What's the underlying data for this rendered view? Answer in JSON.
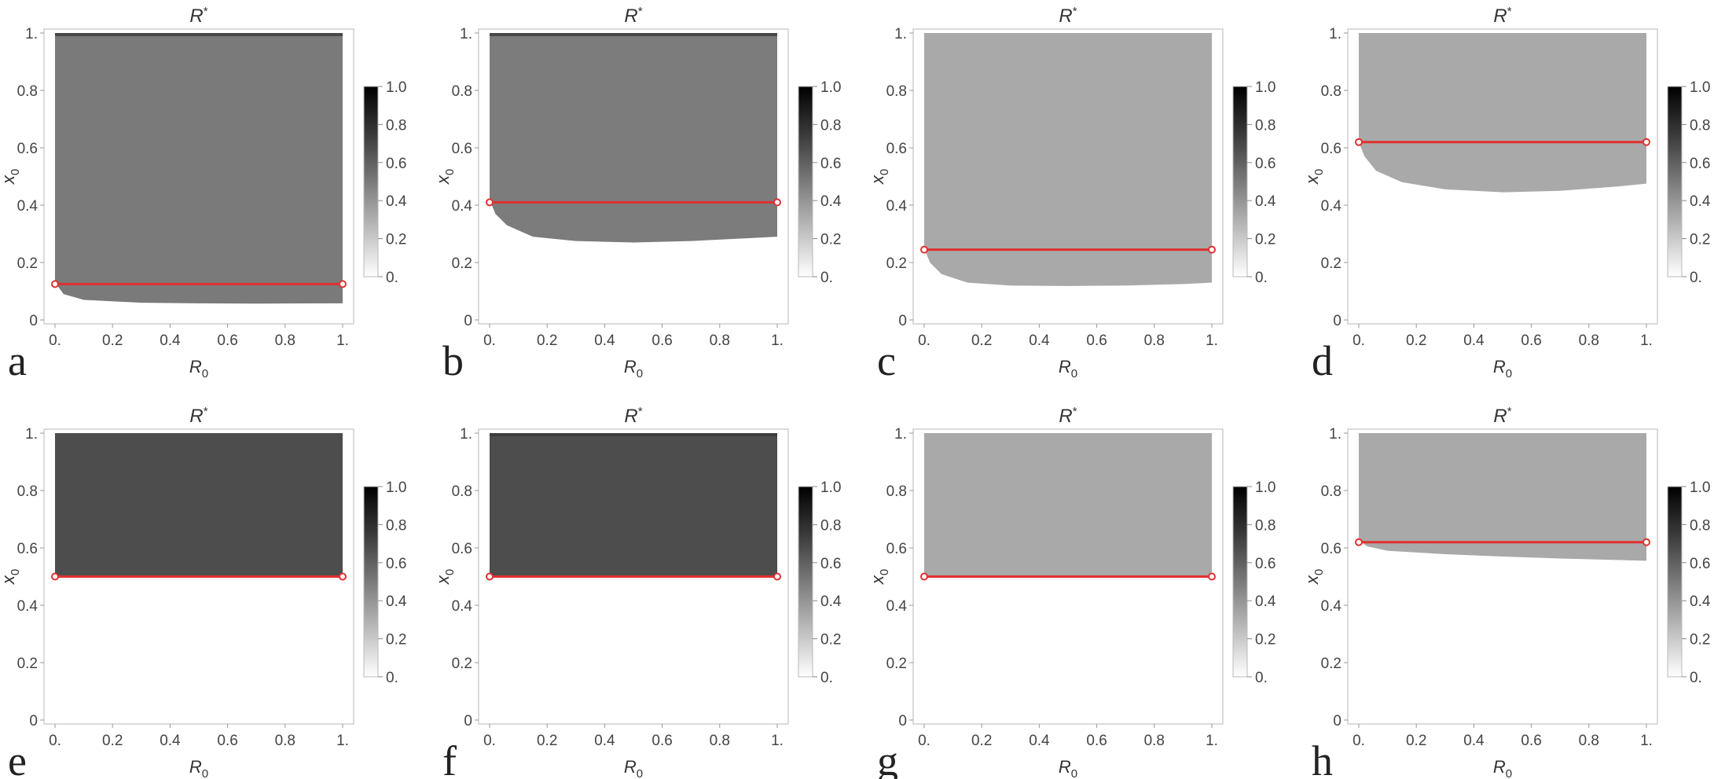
{
  "chart_data": [
    {
      "type": "heatmap",
      "panel_label": "a",
      "title": "R*",
      "xlabel": "R0",
      "ylabel": "x0",
      "xlim": [
        0,
        1
      ],
      "ylim": [
        0,
        1
      ],
      "x_ticks": [
        "0.",
        "0.2",
        "0.4",
        "0.6",
        "0.8",
        "1."
      ],
      "y_ticks": [
        "0",
        "0.2",
        "0.4",
        "0.6",
        "0.8",
        "1."
      ],
      "region_value": 0.58,
      "region_color": "#7a7a7a",
      "top_band_color": "#474747",
      "boundary": [
        [
          0,
          0.13
        ],
        [
          0.03,
          0.09
        ],
        [
          0.1,
          0.07
        ],
        [
          0.3,
          0.06
        ],
        [
          0.5,
          0.058
        ],
        [
          0.7,
          0.057
        ],
        [
          1,
          0.058
        ]
      ],
      "red_line_y": 0.125,
      "colorbar": {
        "ticks": [
          "1.0",
          "0.8",
          "0.6",
          "0.4",
          "0.2",
          "0."
        ],
        "range": [
          0,
          1
        ]
      }
    },
    {
      "type": "heatmap",
      "panel_label": "b",
      "title": "R*",
      "xlabel": "R0",
      "ylabel": "x0",
      "xlim": [
        0,
        1
      ],
      "ylim": [
        0,
        1
      ],
      "x_ticks": [
        "0.",
        "0.2",
        "0.4",
        "0.6",
        "0.8",
        "1."
      ],
      "y_ticks": [
        "0",
        "0.2",
        "0.4",
        "0.6",
        "0.8",
        "1."
      ],
      "region_value": 0.57,
      "region_color": "#7c7c7c",
      "top_band_color": "#474747",
      "boundary": [
        [
          0,
          0.42
        ],
        [
          0.02,
          0.37
        ],
        [
          0.06,
          0.33
        ],
        [
          0.15,
          0.29
        ],
        [
          0.3,
          0.275
        ],
        [
          0.5,
          0.27
        ],
        [
          0.7,
          0.275
        ],
        [
          0.9,
          0.285
        ],
        [
          1,
          0.29
        ]
      ],
      "red_line_y": 0.41,
      "colorbar": {
        "ticks": [
          "1.0",
          "0.8",
          "0.6",
          "0.4",
          "0.2",
          "0."
        ],
        "range": [
          0,
          1
        ]
      }
    },
    {
      "type": "heatmap",
      "panel_label": "c",
      "title": "R*",
      "xlabel": "R0",
      "ylabel": "x0",
      "xlim": [
        0,
        1
      ],
      "ylim": [
        0,
        1
      ],
      "x_ticks": [
        "0.",
        "0.2",
        "0.4",
        "0.6",
        "0.8",
        "1."
      ],
      "y_ticks": [
        "0",
        "0.2",
        "0.4",
        "0.6",
        "0.8",
        "1."
      ],
      "region_value": 0.37,
      "region_color": "#a9a9a9",
      "top_band_color": "#a9a9a9",
      "boundary": [
        [
          0,
          0.25
        ],
        [
          0.02,
          0.2
        ],
        [
          0.06,
          0.16
        ],
        [
          0.15,
          0.13
        ],
        [
          0.3,
          0.12
        ],
        [
          0.5,
          0.118
        ],
        [
          0.7,
          0.12
        ],
        [
          0.9,
          0.125
        ],
        [
          1,
          0.13
        ]
      ],
      "red_line_y": 0.245,
      "colorbar": {
        "ticks": [
          "1.0",
          "0.8",
          "0.6",
          "0.4",
          "0.2",
          "0."
        ],
        "range": [
          0,
          1
        ]
      }
    },
    {
      "type": "heatmap",
      "panel_label": "d",
      "title": "R*",
      "xlabel": "R0",
      "ylabel": "x0",
      "xlim": [
        0,
        1
      ],
      "ylim": [
        0,
        1
      ],
      "x_ticks": [
        "0.",
        "0.2",
        "0.4",
        "0.6",
        "0.8",
        "1."
      ],
      "y_ticks": [
        "0",
        "0.2",
        "0.4",
        "0.6",
        "0.8",
        "1."
      ],
      "region_value": 0.37,
      "region_color": "#a9a9a9",
      "top_band_color": "#a9a9a9",
      "boundary": [
        [
          0,
          0.62
        ],
        [
          0.02,
          0.57
        ],
        [
          0.06,
          0.52
        ],
        [
          0.15,
          0.48
        ],
        [
          0.3,
          0.455
        ],
        [
          0.5,
          0.445
        ],
        [
          0.7,
          0.45
        ],
        [
          0.9,
          0.465
        ],
        [
          1,
          0.475
        ]
      ],
      "red_line_y": 0.62,
      "colorbar": {
        "ticks": [
          "1.0",
          "0.8",
          "0.6",
          "0.4",
          "0.2",
          "0."
        ],
        "range": [
          0,
          1
        ]
      }
    },
    {
      "type": "heatmap",
      "panel_label": "e",
      "title": "R*",
      "xlabel": "R0",
      "ylabel": "x0",
      "xlim": [
        0,
        1
      ],
      "ylim": [
        0,
        1
      ],
      "x_ticks": [
        "0.",
        "0.2",
        "0.4",
        "0.6",
        "0.8",
        "1."
      ],
      "y_ticks": [
        "0",
        "0.2",
        "0.4",
        "0.6",
        "0.8",
        "1."
      ],
      "region_value": 0.78,
      "region_color": "#4d4d4d",
      "top_band_color": "#4d4d4d",
      "boundary": [
        [
          0,
          0.5
        ],
        [
          1,
          0.5
        ]
      ],
      "red_line_y": 0.5,
      "colorbar": {
        "ticks": [
          "1.0",
          "0.8",
          "0.6",
          "0.4",
          "0.2",
          "0."
        ],
        "range": [
          0,
          1
        ]
      }
    },
    {
      "type": "heatmap",
      "panel_label": "f",
      "title": "R*",
      "xlabel": "R0",
      "ylabel": "x0",
      "xlim": [
        0,
        1
      ],
      "ylim": [
        0,
        1
      ],
      "x_ticks": [
        "0.",
        "0.2",
        "0.4",
        "0.6",
        "0.8",
        "1."
      ],
      "y_ticks": [
        "0",
        "0.2",
        "0.4",
        "0.6",
        "0.8",
        "1."
      ],
      "region_value": 0.78,
      "region_color": "#4d4d4d",
      "top_band_color": "#3d3d3d",
      "boundary": [
        [
          0,
          0.5
        ],
        [
          1,
          0.5
        ]
      ],
      "red_line_y": 0.5,
      "colorbar": {
        "ticks": [
          "1.0",
          "0.8",
          "0.6",
          "0.4",
          "0.2",
          "0."
        ],
        "range": [
          0,
          1
        ]
      }
    },
    {
      "type": "heatmap",
      "panel_label": "g",
      "title": "R*",
      "xlabel": "R0",
      "ylabel": "x0",
      "xlim": [
        0,
        1
      ],
      "ylim": [
        0,
        1
      ],
      "x_ticks": [
        "0.",
        "0.2",
        "0.4",
        "0.6",
        "0.8",
        "1."
      ],
      "y_ticks": [
        "0",
        "0.2",
        "0.4",
        "0.6",
        "0.8",
        "1."
      ],
      "region_value": 0.37,
      "region_color": "#a9a9a9",
      "top_band_color": "#a9a9a9",
      "boundary": [
        [
          0,
          0.5
        ],
        [
          1,
          0.5
        ]
      ],
      "red_line_y": 0.5,
      "colorbar": {
        "ticks": [
          "1.0",
          "0.8",
          "0.6",
          "0.4",
          "0.2",
          "0."
        ],
        "range": [
          0,
          1
        ]
      }
    },
    {
      "type": "heatmap",
      "panel_label": "h",
      "title": "R*",
      "xlabel": "R0",
      "ylabel": "x0",
      "xlim": [
        0,
        1
      ],
      "ylim": [
        0,
        1
      ],
      "x_ticks": [
        "0.",
        "0.2",
        "0.4",
        "0.6",
        "0.8",
        "1."
      ],
      "y_ticks": [
        "0",
        "0.2",
        "0.4",
        "0.6",
        "0.8",
        "1."
      ],
      "region_value": 0.37,
      "region_color": "#a9a9a9",
      "top_band_color": "#a9a9a9",
      "boundary": [
        [
          0,
          0.625
        ],
        [
          0.03,
          0.605
        ],
        [
          0.1,
          0.59
        ],
        [
          0.3,
          0.578
        ],
        [
          0.5,
          0.57
        ],
        [
          0.7,
          0.563
        ],
        [
          1,
          0.555
        ]
      ],
      "red_line_y": 0.62,
      "colorbar": {
        "ticks": [
          "1.0",
          "0.8",
          "0.6",
          "0.4",
          "0.2",
          "0."
        ],
        "range": [
          0,
          1
        ]
      }
    }
  ],
  "styles": {
    "red_line_color": "#e03030",
    "frame_color": "#cfcfcf",
    "colorbar_top": "#000000",
    "colorbar_bottom": "#ffffff"
  }
}
